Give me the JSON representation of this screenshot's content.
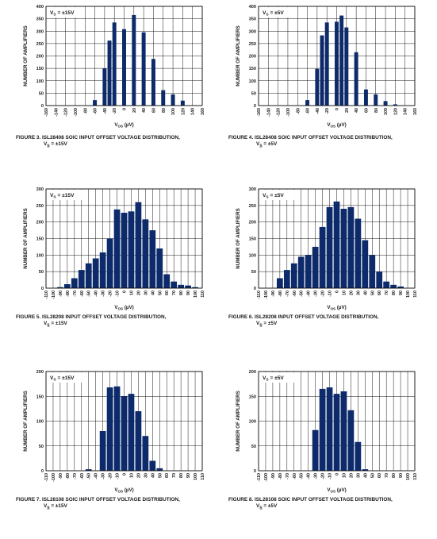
{
  "charts": [
    {
      "id": "fig3",
      "type": "bar",
      "condition": "V",
      "condition_sub": "S",
      "condition_value": " = ±15V",
      "ylabel": "NUMBER OF AMPLIFIERS",
      "xlabel": "V",
      "xlabel_sub": "OS",
      "xlabel_unit": " (µV)",
      "caption_line1": "FIGURE 3.  ISL28408 SOIC INPUT OFFSET VOLTAGE DISTRIBUTION,",
      "caption_line2_a": "V",
      "caption_line2_sub": "S",
      "caption_line2_b": " = ±15V",
      "ylim": [
        0,
        400
      ],
      "yticks": [
        "0",
        "50",
        "100",
        "150",
        "200",
        "250",
        "300",
        "350",
        "400"
      ],
      "xticks": [
        "-160",
        "-140",
        "-120",
        "-100",
        "-80",
        "-60",
        "-40",
        "-20",
        "0",
        "20",
        "40",
        "60",
        "80",
        "100",
        "120",
        "140",
        "160"
      ],
      "x": [
        -60,
        -50,
        -40,
        -30,
        -20,
        -10,
        0,
        10,
        20,
        30,
        40,
        50,
        60,
        70,
        80,
        90,
        100,
        110,
        120,
        130
      ],
      "values": [
        22,
        0,
        150,
        262,
        335,
        0,
        308,
        0,
        365,
        0,
        295,
        0,
        188,
        0,
        62,
        0,
        45,
        0,
        20,
        0
      ],
      "bars": [
        [
          -60,
          22
        ],
        [
          -40,
          150
        ],
        [
          -30,
          262
        ],
        [
          -20,
          335
        ],
        [
          0,
          308
        ],
        [
          20,
          365
        ],
        [
          40,
          295
        ],
        [
          60,
          188
        ],
        [
          80,
          62
        ],
        [
          100,
          45
        ],
        [
          120,
          20
        ]
      ]
    },
    {
      "id": "fig4",
      "type": "bar",
      "condition": "V",
      "condition_sub": "S",
      "condition_value": " = ±5V",
      "ylabel": "NUMBER OF AMPLIFIERS",
      "xlabel": "V",
      "xlabel_sub": "OS",
      "xlabel_unit": " (µV)",
      "caption_line1": "FIGURE 4.  ISL28408 SOIC INPUT OFFSET VOLTAGE DISTRIBUTION,",
      "caption_line2_a": "V",
      "caption_line2_sub": "S",
      "caption_line2_b": " = ±5V",
      "ylim": [
        0,
        400
      ],
      "yticks": [
        "0",
        "50",
        "100",
        "150",
        "200",
        "250",
        "300",
        "350",
        "400"
      ],
      "xticks": [
        "-160",
        "-140",
        "-120",
        "-100",
        "-80",
        "-60",
        "-40",
        "-20",
        "0",
        "20",
        "40",
        "60",
        "80",
        "100",
        "120",
        "140",
        "160"
      ],
      "bars": [
        [
          -60,
          22
        ],
        [
          -40,
          148
        ],
        [
          -30,
          283
        ],
        [
          -20,
          335
        ],
        [
          0,
          338
        ],
        [
          10,
          363
        ],
        [
          20,
          315
        ],
        [
          40,
          215
        ],
        [
          60,
          65
        ],
        [
          80,
          45
        ],
        [
          100,
          18
        ],
        [
          120,
          5
        ]
      ]
    },
    {
      "id": "fig5",
      "type": "bar",
      "condition": "V",
      "condition_sub": "S",
      "condition_value": " = ±15V",
      "ylabel": "NUMBER OF AMPLIFIERS",
      "xlabel": "V",
      "xlabel_sub": "OS",
      "xlabel_unit": " (µV)",
      "caption_line1": "FIGURE 5.  ISL28208 INPUT OFFSET VOLTAGE DISTRIBUTION,",
      "caption_line2_a": "V",
      "caption_line2_sub": "S",
      "caption_line2_b": " = ±15V",
      "ylim": [
        0,
        300
      ],
      "yticks": [
        "0",
        "50",
        "100",
        "150",
        "200",
        "250",
        "300"
      ],
      "xticks": [
        "-110",
        "-100",
        "-90",
        "-80",
        "-70",
        "-60",
        "-50",
        "-40",
        "-30",
        "-20",
        "-10",
        "0",
        "10",
        "20",
        "30",
        "40",
        "50",
        "60",
        "70",
        "80",
        "90",
        "100",
        "110"
      ],
      "bars": [
        [
          -90,
          3
        ],
        [
          -80,
          12
        ],
        [
          -70,
          30
        ],
        [
          -60,
          55
        ],
        [
          -50,
          75
        ],
        [
          -40,
          90
        ],
        [
          -30,
          108
        ],
        [
          -20,
          150
        ],
        [
          -10,
          238
        ],
        [
          0,
          228
        ],
        [
          10,
          232
        ],
        [
          20,
          260
        ],
        [
          30,
          208
        ],
        [
          40,
          175
        ],
        [
          50,
          120
        ],
        [
          60,
          42
        ],
        [
          70,
          20
        ],
        [
          80,
          10
        ],
        [
          90,
          8
        ],
        [
          100,
          3
        ]
      ]
    },
    {
      "id": "fig6",
      "type": "bar",
      "condition": "V",
      "condition_sub": "S",
      "condition_value": " = ±5V",
      "ylabel": "NUMBER OF AMPLIFIERS",
      "xlabel": "V",
      "xlabel_sub": "OS",
      "xlabel_unit": " (µV)",
      "caption_line1": "FIGURE 6.  ISL28208 INPUT OFFSET VOLTAGE DISTRIBUTION,",
      "caption_line2_a": "V",
      "caption_line2_sub": "S",
      "caption_line2_b": " = ±5V",
      "ylim": [
        0,
        300
      ],
      "yticks": [
        "0",
        "50",
        "100",
        "150",
        "200",
        "250",
        "300"
      ],
      "xticks": [
        "-110",
        "-100",
        "-90",
        "-80",
        "-70",
        "-60",
        "-50",
        "-40",
        "-30",
        "-20",
        "-10",
        "0",
        "10",
        "20",
        "30",
        "40",
        "50",
        "60",
        "70",
        "80",
        "90",
        "100",
        "110"
      ],
      "bars": [
        [
          -80,
          30
        ],
        [
          -70,
          55
        ],
        [
          -60,
          75
        ],
        [
          -50,
          95
        ],
        [
          -40,
          100
        ],
        [
          -30,
          125
        ],
        [
          -20,
          185
        ],
        [
          -10,
          245
        ],
        [
          0,
          262
        ],
        [
          10,
          240
        ],
        [
          20,
          245
        ],
        [
          30,
          210
        ],
        [
          40,
          145
        ],
        [
          50,
          100
        ],
        [
          60,
          50
        ],
        [
          70,
          20
        ],
        [
          80,
          10
        ],
        [
          90,
          5
        ]
      ]
    },
    {
      "id": "fig7",
      "type": "bar",
      "condition": "V",
      "condition_sub": "S",
      "condition_value": " = ±15V",
      "ylabel": "NUMBER OF AMPLIFIERS",
      "xlabel": "V",
      "xlabel_sub": "OS",
      "xlabel_unit": " (µV)",
      "caption_line1": "FIGURE 7.  ISL28108 SOIC INPUT OFFSET VOLTAGE DISTRIBUTION,",
      "caption_line2_a": "V",
      "caption_line2_sub": "S",
      "caption_line2_b": " = ±15V",
      "ylim": [
        0,
        200
      ],
      "yticks": [
        "0",
        "50",
        "100",
        "150",
        "200"
      ],
      "xticks": [
        "-110",
        "-100",
        "-90",
        "-80",
        "-70",
        "-60",
        "-50",
        "-40",
        "-30",
        "-20",
        "-10",
        "0",
        "10",
        "20",
        "30",
        "40",
        "50",
        "60",
        "70",
        "80",
        "90",
        "100",
        "110"
      ],
      "bars": [
        [
          -50,
          3
        ],
        [
          -30,
          80
        ],
        [
          -20,
          168
        ],
        [
          -10,
          170
        ],
        [
          0,
          150
        ],
        [
          10,
          155
        ],
        [
          20,
          120
        ],
        [
          30,
          70
        ],
        [
          40,
          20
        ],
        [
          50,
          5
        ]
      ]
    },
    {
      "id": "fig8",
      "type": "bar",
      "condition": "V",
      "condition_sub": "S",
      "condition_value": " = ±5V",
      "ylabel": "NUMBER OF AMPLIFIERS",
      "xlabel": "V",
      "xlabel_sub": "OS",
      "xlabel_unit": " (µV)",
      "caption_line1": "FIGURE 8.  ISL28108 SOIC INPUT OFFSET VOLTAGE DISTRIBUTION,",
      "caption_line2_a": "V",
      "caption_line2_sub": "S",
      "caption_line2_b": " = ±5V",
      "ylim": [
        0,
        200
      ],
      "yticks": [
        "0",
        "50",
        "100",
        "150",
        "200"
      ],
      "xticks": [
        "-110",
        "-100",
        "-90",
        "-80",
        "-70",
        "-60",
        "-50",
        "-40",
        "-30",
        "-20",
        "-10",
        "0",
        "10",
        "20",
        "30",
        "40",
        "50",
        "60",
        "70",
        "80",
        "90",
        "100",
        "110"
      ],
      "bars": [
        [
          -30,
          82
        ],
        [
          -20,
          165
        ],
        [
          -10,
          168
        ],
        [
          0,
          155
        ],
        [
          10,
          160
        ],
        [
          20,
          122
        ],
        [
          30,
          58
        ],
        [
          40,
          3
        ]
      ]
    }
  ],
  "chart_data": [
    {
      "type": "bar",
      "title": "FIGURE 3.  ISL28408 SOIC INPUT OFFSET VOLTAGE DISTRIBUTION, VS = ±15V",
      "xlabel": "VOS (µV)",
      "ylabel": "NUMBER OF AMPLIFIERS",
      "ylim": [
        0,
        400
      ],
      "xlim": [
        -160,
        160
      ],
      "grid": true,
      "x": [
        -60,
        -40,
        -30,
        -20,
        0,
        20,
        40,
        60,
        80,
        100,
        120
      ],
      "values": [
        22,
        150,
        262,
        335,
        308,
        365,
        295,
        188,
        62,
        45,
        20
      ]
    },
    {
      "type": "bar",
      "title": "FIGURE 4.  ISL28408 SOIC INPUT OFFSET VOLTAGE DISTRIBUTION, VS = ±5V",
      "xlabel": "VOS (µV)",
      "ylabel": "NUMBER OF AMPLIFIERS",
      "ylim": [
        0,
        400
      ],
      "xlim": [
        -160,
        160
      ],
      "grid": true,
      "x": [
        -60,
        -40,
        -30,
        -20,
        0,
        10,
        20,
        40,
        60,
        80,
        100,
        120
      ],
      "values": [
        22,
        148,
        283,
        335,
        338,
        363,
        315,
        215,
        65,
        45,
        18,
        5
      ]
    },
    {
      "type": "bar",
      "title": "FIGURE 5.  ISL28208 INPUT OFFSET VOLTAGE DISTRIBUTION, VS = ±15V",
      "xlabel": "VOS (µV)",
      "ylabel": "NUMBER OF AMPLIFIERS",
      "ylim": [
        0,
        300
      ],
      "xlim": [
        -110,
        110
      ],
      "grid": true,
      "x": [
        -90,
        -80,
        -70,
        -60,
        -50,
        -40,
        -30,
        -20,
        -10,
        0,
        10,
        20,
        30,
        40,
        50,
        60,
        70,
        80,
        90,
        100
      ],
      "values": [
        3,
        12,
        30,
        55,
        75,
        90,
        108,
        150,
        238,
        228,
        232,
        260,
        208,
        175,
        120,
        42,
        20,
        10,
        8,
        3
      ]
    },
    {
      "type": "bar",
      "title": "FIGURE 6.  ISL28208 INPUT OFFSET VOLTAGE DISTRIBUTION, VS = ±5V",
      "xlabel": "VOS (µV)",
      "ylabel": "NUMBER OF AMPLIFIERS",
      "ylim": [
        0,
        300
      ],
      "xlim": [
        -110,
        110
      ],
      "grid": true,
      "x": [
        -80,
        -70,
        -60,
        -50,
        -40,
        -30,
        -20,
        -10,
        0,
        10,
        20,
        30,
        40,
        50,
        60,
        70,
        80,
        90
      ],
      "values": [
        30,
        55,
        75,
        95,
        100,
        125,
        185,
        245,
        262,
        240,
        245,
        210,
        145,
        100,
        50,
        20,
        10,
        5
      ]
    },
    {
      "type": "bar",
      "title": "FIGURE 7.  ISL28108 SOIC INPUT OFFSET VOLTAGE DISTRIBUTION, VS = ±15V",
      "xlabel": "VOS (µV)",
      "ylabel": "NUMBER OF AMPLIFIERS",
      "ylim": [
        0,
        200
      ],
      "xlim": [
        -110,
        110
      ],
      "grid": true,
      "x": [
        -50,
        -30,
        -20,
        -10,
        0,
        10,
        20,
        30,
        40,
        50
      ],
      "values": [
        3,
        80,
        168,
        170,
        150,
        155,
        120,
        70,
        20,
        5
      ]
    },
    {
      "type": "bar",
      "title": "FIGURE 8.  ISL28108 SOIC INPUT OFFSET VOLTAGE DISTRIBUTION, VS = ±5V",
      "xlabel": "VOS (µV)",
      "ylabel": "NUMBER OF AMPLIFIERS",
      "ylim": [
        0,
        200
      ],
      "xlim": [
        -110,
        110
      ],
      "grid": true,
      "x": [
        -30,
        -20,
        -10,
        0,
        10,
        20,
        30,
        40
      ],
      "values": [
        82,
        165,
        168,
        155,
        160,
        122,
        58,
        3
      ]
    }
  ],
  "colors": {
    "bar": "#0d2a6b",
    "grid": "#000000",
    "text": "#1a1a1a"
  }
}
